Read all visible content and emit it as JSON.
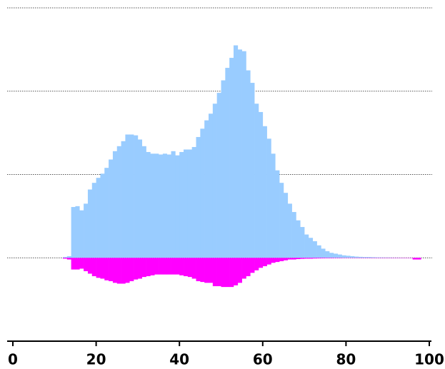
{
  "chart_data": {
    "type": "mirrored-histogram",
    "bins": [
      12,
      13,
      14,
      15,
      16,
      17,
      18,
      19,
      20,
      21,
      22,
      23,
      24,
      25,
      26,
      27,
      28,
      29,
      30,
      31,
      32,
      33,
      34,
      35,
      36,
      37,
      38,
      39,
      40,
      41,
      42,
      43,
      44,
      45,
      46,
      47,
      48,
      49,
      50,
      51,
      52,
      53,
      54,
      55,
      56,
      57,
      58,
      59,
      60,
      61,
      62,
      63,
      64,
      65,
      66,
      67,
      68,
      69,
      70,
      71,
      72,
      73,
      74,
      75,
      76,
      77,
      78,
      79,
      80,
      81,
      82,
      83,
      84,
      85,
      86,
      87,
      88,
      89,
      90,
      91,
      92,
      93,
      94,
      95,
      96,
      97,
      98
    ],
    "series": [
      {
        "color": "#99ccff",
        "values": [
          0.01,
          0.02,
          0.61,
          0.62,
          0.57,
          0.65,
          0.82,
          0.9,
          0.96,
          1.01,
          1.08,
          1.18,
          1.28,
          1.34,
          1.4,
          1.48,
          1.48,
          1.47,
          1.42,
          1.34,
          1.27,
          1.25,
          1.25,
          1.24,
          1.25,
          1.24,
          1.28,
          1.23,
          1.27,
          1.3,
          1.3,
          1.33,
          1.45,
          1.55,
          1.65,
          1.73,
          1.85,
          1.98,
          2.13,
          2.28,
          2.4,
          2.55,
          2.5,
          2.48,
          2.25,
          2.1,
          1.85,
          1.75,
          1.58,
          1.43,
          1.25,
          1.05,
          0.9,
          0.78,
          0.65,
          0.55,
          0.45,
          0.37,
          0.28,
          0.24,
          0.2,
          0.15,
          0.11,
          0.08,
          0.06,
          0.05,
          0.04,
          0.03,
          0.025,
          0.02,
          0.015,
          0.012,
          0.01,
          0.01,
          0.008,
          0.006,
          0.005,
          0.004,
          0.004,
          0.003,
          0.003,
          0.002,
          0.002,
          0.002,
          0.002,
          0.002
        ]
      },
      {
        "color": "#ff00ff",
        "values": [
          -0.01,
          -0.02,
          -0.14,
          -0.14,
          -0.13,
          -0.16,
          -0.19,
          -0.22,
          -0.24,
          -0.25,
          -0.27,
          -0.28,
          -0.3,
          -0.31,
          -0.31,
          -0.3,
          -0.28,
          -0.26,
          -0.25,
          -0.23,
          -0.22,
          -0.21,
          -0.2,
          -0.2,
          -0.2,
          -0.2,
          -0.2,
          -0.2,
          -0.21,
          -0.22,
          -0.23,
          -0.25,
          -0.28,
          -0.29,
          -0.3,
          -0.3,
          -0.34,
          -0.34,
          -0.35,
          -0.35,
          -0.35,
          -0.33,
          -0.3,
          -0.25,
          -0.22,
          -0.18,
          -0.15,
          -0.12,
          -0.1,
          -0.08,
          -0.06,
          -0.05,
          -0.04,
          -0.03,
          -0.02,
          -0.02,
          -0.015,
          -0.012,
          -0.01,
          -0.01,
          -0.008,
          -0.007,
          -0.006,
          -0.005,
          -0.005,
          -0.004,
          -0.004,
          -0.003,
          -0.003,
          -0.003,
          -0.003,
          -0.003,
          -0.003,
          -0.003,
          -0.003,
          -0.003,
          -0.003,
          -0.003,
          -0.003,
          -0.003,
          -0.003,
          -0.003,
          -0.003,
          -0.003,
          -0.02,
          -0.02
        ]
      }
    ],
    "xlim": [
      0,
      100
    ],
    "xticks": [
      0,
      20,
      40,
      60,
      80,
      100
    ],
    "ylim": [
      -1,
      3
    ],
    "yticks": [
      0,
      1,
      2,
      3
    ],
    "grid": true,
    "ytick_labels": false
  }
}
